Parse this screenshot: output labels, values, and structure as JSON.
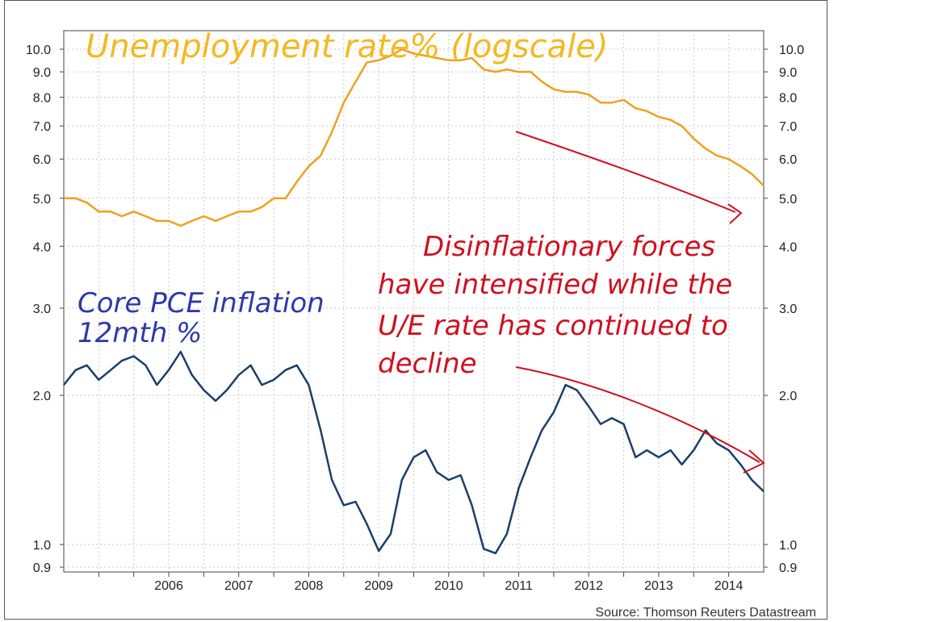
{
  "chart_data": {
    "type": "line",
    "yscale": "log",
    "ylim": [
      0.88,
      10.9
    ],
    "xlim": [
      2005.0,
      2015.0
    ],
    "y_ticks": [
      10.0,
      9.0,
      8.0,
      7.0,
      6.0,
      5.0,
      4.0,
      3.0,
      2.0,
      1.0,
      0.9
    ],
    "y_tick_labels": [
      "10.0",
      "9.0",
      "8.0",
      "7.0",
      "6.0",
      "5.0",
      "4.0",
      "3.0",
      "2.0",
      "1.0",
      "0.9"
    ],
    "x_tick_labels": [
      "2006",
      "2007",
      "2008",
      "2009",
      "2010",
      "2011",
      "2012",
      "2013",
      "2014"
    ],
    "x_tick_values": [
      2006,
      2007,
      2008,
      2009,
      2010,
      2011,
      2012,
      2013,
      2014
    ],
    "grid": true,
    "source": "Source: Thomson Reuters Datastream",
    "series": [
      {
        "name": "Unemployment rate% (logscale)",
        "color": "#f0a020",
        "points": [
          [
            2005.0,
            5.0
          ],
          [
            2005.17,
            5.0
          ],
          [
            2005.33,
            4.9
          ],
          [
            2005.5,
            4.7
          ],
          [
            2005.67,
            4.7
          ],
          [
            2005.83,
            4.6
          ],
          [
            2006.0,
            4.7
          ],
          [
            2006.17,
            4.6
          ],
          [
            2006.33,
            4.5
          ],
          [
            2006.5,
            4.5
          ],
          [
            2006.67,
            4.4
          ],
          [
            2006.83,
            4.5
          ],
          [
            2007.0,
            4.6
          ],
          [
            2007.17,
            4.5
          ],
          [
            2007.33,
            4.6
          ],
          [
            2007.5,
            4.7
          ],
          [
            2007.67,
            4.7
          ],
          [
            2007.83,
            4.8
          ],
          [
            2008.0,
            5.0
          ],
          [
            2008.17,
            5.0
          ],
          [
            2008.33,
            5.4
          ],
          [
            2008.5,
            5.8
          ],
          [
            2008.67,
            6.1
          ],
          [
            2008.83,
            6.8
          ],
          [
            2009.0,
            7.8
          ],
          [
            2009.17,
            8.6
          ],
          [
            2009.33,
            9.4
          ],
          [
            2009.5,
            9.5
          ],
          [
            2009.67,
            9.7
          ],
          [
            2009.83,
            10.0
          ],
          [
            2010.0,
            9.8
          ],
          [
            2010.17,
            9.7
          ],
          [
            2010.33,
            9.6
          ],
          [
            2010.5,
            9.5
          ],
          [
            2010.67,
            9.5
          ],
          [
            2010.83,
            9.6
          ],
          [
            2011.0,
            9.1
          ],
          [
            2011.17,
            9.0
          ],
          [
            2011.33,
            9.1
          ],
          [
            2011.5,
            9.0
          ],
          [
            2011.67,
            9.0
          ],
          [
            2011.83,
            8.6
          ],
          [
            2012.0,
            8.3
          ],
          [
            2012.17,
            8.2
          ],
          [
            2012.33,
            8.2
          ],
          [
            2012.5,
            8.1
          ],
          [
            2012.67,
            7.8
          ],
          [
            2012.83,
            7.8
          ],
          [
            2013.0,
            7.9
          ],
          [
            2013.17,
            7.6
          ],
          [
            2013.33,
            7.5
          ],
          [
            2013.5,
            7.3
          ],
          [
            2013.67,
            7.2
          ],
          [
            2013.83,
            7.0
          ],
          [
            2014.0,
            6.6
          ],
          [
            2014.17,
            6.3
          ],
          [
            2014.33,
            6.1
          ],
          [
            2014.5,
            6.0
          ],
          [
            2014.67,
            5.8
          ],
          [
            2014.83,
            5.6
          ],
          [
            2015.0,
            5.3
          ]
        ]
      },
      {
        "name": "Core PCE inflation 12mth %",
        "color": "#1a3f6b",
        "points": [
          [
            2005.0,
            2.1
          ],
          [
            2005.17,
            2.25
          ],
          [
            2005.33,
            2.3
          ],
          [
            2005.5,
            2.15
          ],
          [
            2005.67,
            2.25
          ],
          [
            2005.83,
            2.35
          ],
          [
            2006.0,
            2.4
          ],
          [
            2006.17,
            2.3
          ],
          [
            2006.33,
            2.1
          ],
          [
            2006.5,
            2.25
          ],
          [
            2006.67,
            2.45
          ],
          [
            2006.83,
            2.2
          ],
          [
            2007.0,
            2.05
          ],
          [
            2007.17,
            1.95
          ],
          [
            2007.33,
            2.05
          ],
          [
            2007.5,
            2.2
          ],
          [
            2007.67,
            2.3
          ],
          [
            2007.83,
            2.1
          ],
          [
            2008.0,
            2.15
          ],
          [
            2008.17,
            2.25
          ],
          [
            2008.33,
            2.3
          ],
          [
            2008.5,
            2.1
          ],
          [
            2008.67,
            1.7
          ],
          [
            2008.83,
            1.35
          ],
          [
            2009.0,
            1.2
          ],
          [
            2009.17,
            1.22
          ],
          [
            2009.33,
            1.1
          ],
          [
            2009.5,
            0.97
          ],
          [
            2009.67,
            1.05
          ],
          [
            2009.83,
            1.35
          ],
          [
            2010.0,
            1.5
          ],
          [
            2010.17,
            1.55
          ],
          [
            2010.33,
            1.4
          ],
          [
            2010.5,
            1.35
          ],
          [
            2010.67,
            1.38
          ],
          [
            2010.83,
            1.2
          ],
          [
            2011.0,
            0.98
          ],
          [
            2011.17,
            0.96
          ],
          [
            2011.33,
            1.05
          ],
          [
            2011.5,
            1.3
          ],
          [
            2011.67,
            1.5
          ],
          [
            2011.83,
            1.7
          ],
          [
            2012.0,
            1.85
          ],
          [
            2012.17,
            2.1
          ],
          [
            2012.33,
            2.05
          ],
          [
            2012.5,
            1.9
          ],
          [
            2012.67,
            1.75
          ],
          [
            2012.83,
            1.8
          ],
          [
            2013.0,
            1.75
          ],
          [
            2013.17,
            1.5
          ],
          [
            2013.33,
            1.55
          ],
          [
            2013.5,
            1.5
          ],
          [
            2013.67,
            1.55
          ],
          [
            2013.83,
            1.45
          ],
          [
            2014.0,
            1.55
          ],
          [
            2014.17,
            1.7
          ],
          [
            2014.33,
            1.6
          ],
          [
            2014.5,
            1.55
          ],
          [
            2014.67,
            1.45
          ],
          [
            2014.83,
            1.35
          ],
          [
            2015.0,
            1.28
          ]
        ]
      }
    ],
    "annotations": {
      "unemployment_label": "Unemployment rate% (logscale)",
      "inflation_label_line1": "Core PCE inflation",
      "inflation_label_line2": "12mth %",
      "note_line1": "Disinflationary forces",
      "note_line2": "have intensified while the",
      "note_line3": "U/E rate has continued to",
      "note_line4": "decline",
      "unemployment_color": "#f5b820",
      "inflation_color": "#2c3aa8",
      "note_color": "#d01020"
    }
  }
}
